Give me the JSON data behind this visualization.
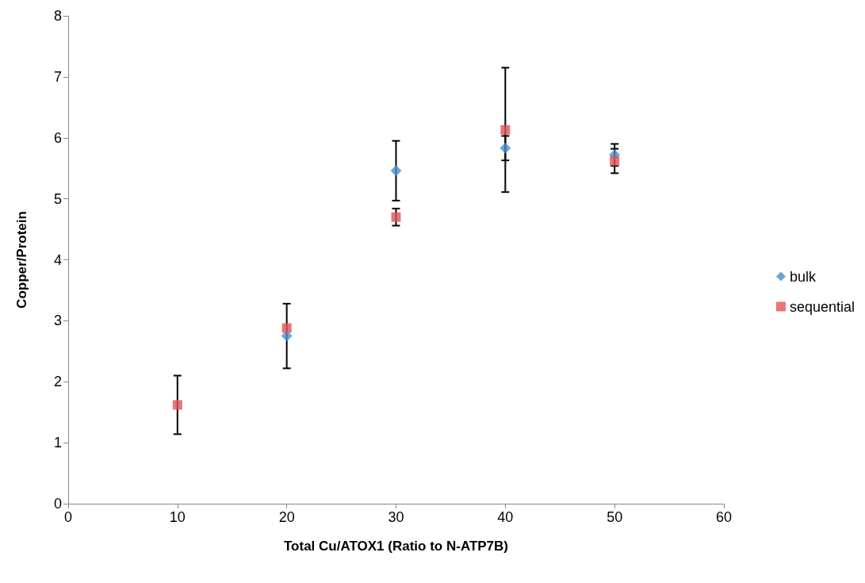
{
  "chart_data": {
    "type": "scatter",
    "xlabel": "Total Cu/ATOX1 (Ratio to N-ATP7B)",
    "ylabel": "Copper/Protein",
    "x": [
      10,
      20,
      30,
      40,
      50
    ],
    "series": [
      {
        "name": "bulk",
        "color": "#4a8fcf",
        "marker": "diamond",
        "values": [
          null,
          2.75,
          5.46,
          5.83,
          5.72
        ],
        "errors": [
          null,
          0.53,
          0.49,
          0.2,
          0.18
        ]
      },
      {
        "name": "sequential",
        "color": "#e05256",
        "marker": "square",
        "values": [
          1.62,
          2.88,
          4.7,
          6.13,
          5.62
        ],
        "errors": [
          0.48,
          null,
          0.14,
          1.02,
          0.2
        ]
      }
    ],
    "xlim": [
      0,
      60
    ],
    "xticks": [
      0,
      10,
      20,
      30,
      40,
      50,
      60
    ],
    "ylim": [
      0,
      8
    ],
    "yticks": [
      0,
      1,
      2,
      3,
      4,
      5,
      6,
      7,
      8
    ],
    "grid": false,
    "legend": "right"
  }
}
